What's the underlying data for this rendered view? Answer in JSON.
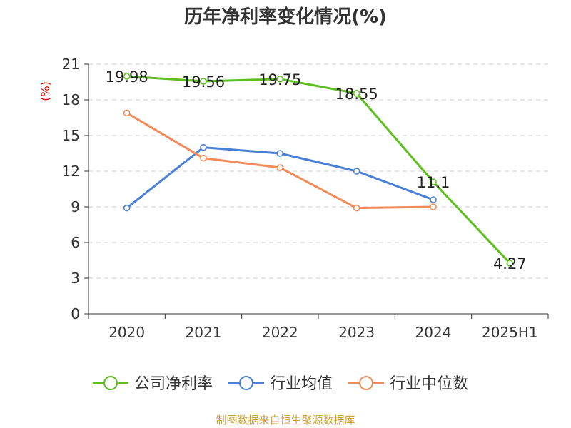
{
  "chart_data": {
    "type": "line",
    "title": "历年净利率变化情况(%)",
    "ylabel": "(%)",
    "categories": [
      "2020",
      "2021",
      "2022",
      "2023",
      "2024",
      "2025H1"
    ],
    "y_ticks": [
      "0",
      "3",
      "6",
      "9",
      "12",
      "15",
      "18",
      "21"
    ],
    "ylim": [
      0,
      21
    ],
    "grid": "horizontal-dashed",
    "legend_position": "bottom",
    "series": [
      {
        "name": "公司净利率",
        "color": "#5cbf1e",
        "values": [
          19.98,
          19.56,
          19.75,
          18.55,
          11.1,
          4.27
        ],
        "labels": [
          "19.98",
          "19.56",
          "19.75",
          "18.55",
          "11.1",
          "4.27"
        ]
      },
      {
        "name": "行业均值",
        "color": "#4a7fd6",
        "values": [
          8.9,
          14.0,
          13.5,
          12.0,
          9.6,
          null
        ]
      },
      {
        "name": "行业中位数",
        "color": "#f28b5a",
        "values": [
          16.9,
          13.1,
          12.3,
          8.9,
          9.0,
          null
        ]
      }
    ]
  },
  "footer": {
    "source": "制图数据来自恒生聚源数据库"
  }
}
